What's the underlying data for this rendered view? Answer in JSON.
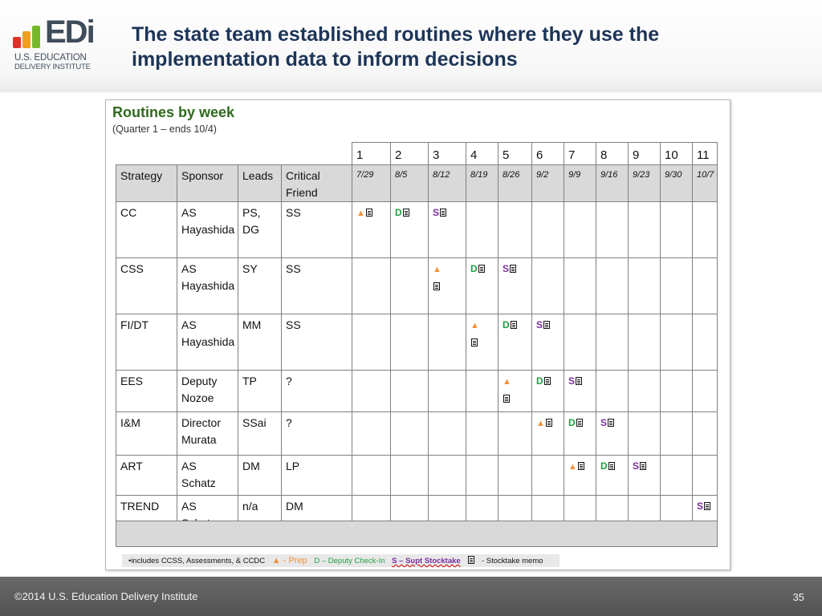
{
  "logo": {
    "wordmark": "EDi",
    "line1": "U.S. EDUCATION",
    "line2": "DELIVERY INSTITUTE",
    "colors": [
      "#d9332a",
      "#f0a01e",
      "#76b82a"
    ]
  },
  "title": "The state team established routines where they use the implementation data to inform decisions",
  "slide_image": {
    "title": "Routines by week",
    "subtitle": "(Quarter 1 – ends 10/4)",
    "headers": [
      "Strategy",
      "Sponsor",
      "Leads",
      "Critical Friend"
    ],
    "weeks": [
      "1",
      "2",
      "3",
      "4",
      "5",
      "6",
      "7",
      "8",
      "9",
      "10",
      "11"
    ],
    "dates": [
      "7/29",
      "8/5",
      "8/12",
      "8/19",
      "8/26",
      "9/2",
      "9/9",
      "9/16",
      "9/23",
      "9/30",
      "10/7"
    ],
    "rows": [
      {
        "strategy": "CC",
        "sponsor": "AS Hayashida",
        "leads": "PS, DG",
        "friend": "SS",
        "marks": [
          {
            "week": 1,
            "kind": "prep"
          },
          {
            "week": 2,
            "kind": "D"
          },
          {
            "week": 3,
            "kind": "S"
          }
        ]
      },
      {
        "strategy": "CSS",
        "sponsor": "AS Hayashida",
        "leads": "SY",
        "friend": "SS",
        "marks": [
          {
            "week": 3,
            "kind": "prep"
          },
          {
            "week": 4,
            "kind": "D"
          },
          {
            "week": 5,
            "kind": "S"
          }
        ]
      },
      {
        "strategy": "FI/DT",
        "sponsor": "AS Hayashida",
        "leads": "MM",
        "friend": "SS",
        "marks": [
          {
            "week": 4,
            "kind": "prep"
          },
          {
            "week": 5,
            "kind": "D"
          },
          {
            "week": 6,
            "kind": "S"
          }
        ]
      },
      {
        "strategy": "EES",
        "sponsor": "Deputy Nozoe",
        "leads": "TP",
        "friend": "?",
        "marks": [
          {
            "week": 5,
            "kind": "prep"
          },
          {
            "week": 6,
            "kind": "D"
          },
          {
            "week": 7,
            "kind": "S"
          }
        ]
      },
      {
        "strategy": "I&M",
        "sponsor": "Director Murata",
        "leads": "SSai",
        "friend": "?",
        "marks": [
          {
            "week": 6,
            "kind": "prep"
          },
          {
            "week": 7,
            "kind": "D"
          },
          {
            "week": 8,
            "kind": "S"
          }
        ]
      },
      {
        "strategy": "ART",
        "sponsor": "AS Schatz",
        "leads": "DM",
        "friend": "LP",
        "marks": [
          {
            "week": 7,
            "kind": "prep"
          },
          {
            "week": 8,
            "kind": "D"
          },
          {
            "week": 9,
            "kind": "S"
          }
        ]
      },
      {
        "strategy": "TREND",
        "sponsor": "AS Schatz",
        "leads": "n/a",
        "friend": "DM",
        "marks": [
          {
            "week": 11,
            "kind": "S"
          }
        ]
      }
    ],
    "mark_text": {
      "prep": "▲",
      "D": "D",
      "S": "S"
    },
    "legend": {
      "note": "•includes CCSS, Assessments, & CCDC",
      "prep": "▲ - Prep",
      "deputy": "D – Deputy Check-In",
      "supt": "S – Supt Stocktake",
      "memo": "- Stocktake memo"
    }
  },
  "footer": {
    "copyright": "©2014 U.S. Education Delivery Institute",
    "page": "35"
  }
}
